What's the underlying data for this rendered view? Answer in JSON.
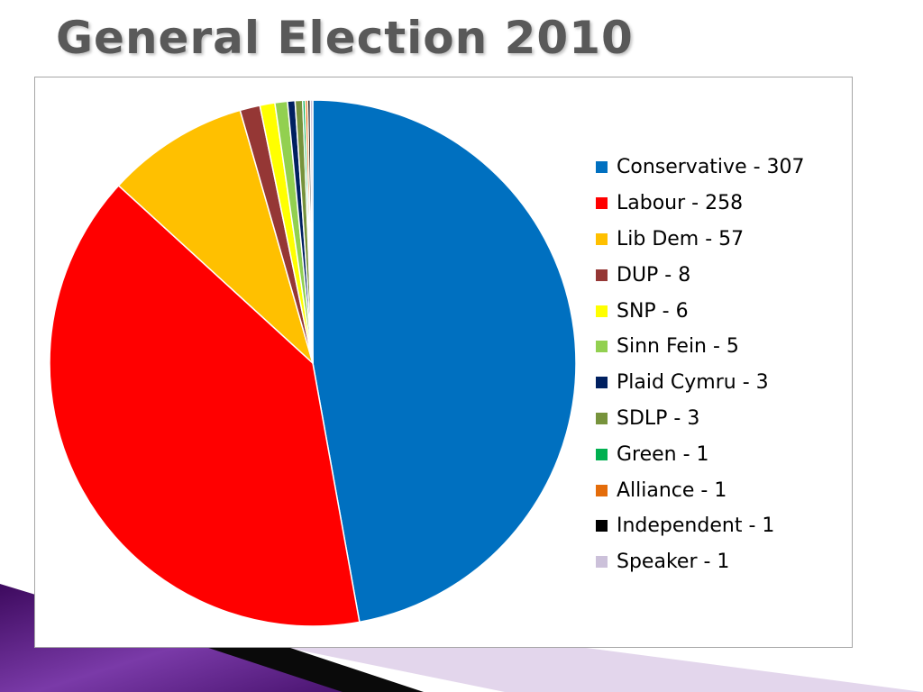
{
  "slide": {
    "title": "General Election 2010"
  },
  "chart_data": {
    "type": "pie",
    "title": "",
    "legend_position": "right",
    "categories": [
      "Conservative",
      "Labour",
      "Lib Dem",
      "DUP",
      "SNP",
      "Sinn Fein",
      "Plaid Cymru",
      "SDLP",
      "Green",
      "Alliance",
      "Independent",
      "Speaker"
    ],
    "values": [
      307,
      258,
      57,
      8,
      6,
      5,
      3,
      3,
      1,
      1,
      1,
      1
    ],
    "legend_labels": [
      "Conservative - 307",
      "Labour - 258",
      "Lib Dem - 57",
      "DUP - 8",
      "SNP - 6",
      "Sinn Fein - 5",
      "Plaid Cymru - 3",
      "SDLP - 3",
      "Green - 1",
      "Alliance - 1",
      "Independent - 1",
      "Speaker - 1"
    ],
    "colors": [
      "#0070C0",
      "#FF0000",
      "#FFC000",
      "#953735",
      "#FFFF00",
      "#92D050",
      "#002060",
      "#77933C",
      "#00B050",
      "#E46C0A",
      "#000000",
      "#CCC1DA"
    ]
  }
}
